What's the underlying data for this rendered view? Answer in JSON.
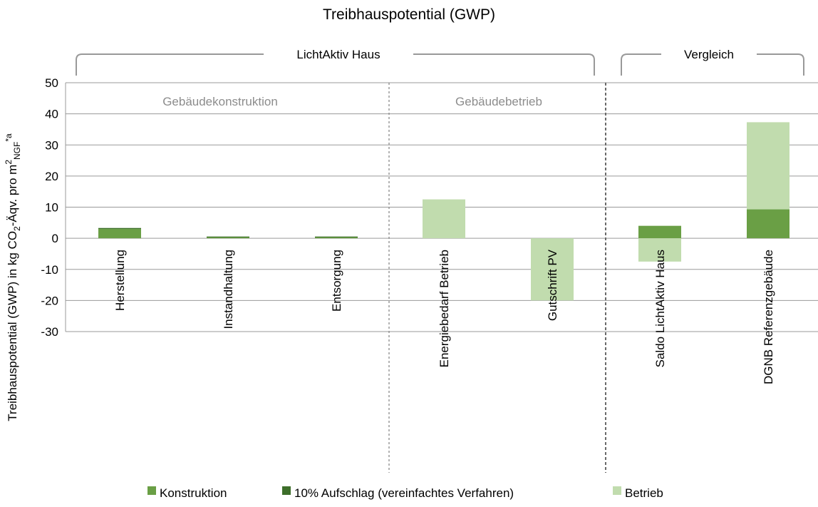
{
  "chart_data": {
    "type": "bar",
    "stacked": true,
    "title": "Treibhauspotential (GWP)",
    "ylabel": "Treibhauspotential (GWP) in kg CO2-Äqv. pro m²NGF*a",
    "ylabel_parts": {
      "a": "Treibhauspotential (GWP) in kg CO",
      "b": "2",
      "c": "-Äqv. pro m",
      "d": "2",
      "e": "NGF",
      "f": "*a"
    },
    "ylim": [
      -30,
      50
    ],
    "yticks": [
      "50",
      "40",
      "30",
      "20",
      "10",
      "0",
      "-10",
      "-20",
      "-30"
    ],
    "grid": true,
    "legend_position": "bottom",
    "categories": [
      "Herstellung",
      "Instandhaltung",
      "Entsorgung",
      "Energiebedarf Betrieb",
      "Gutschrift PV",
      "Saldo LichtAktiv Haus",
      "DGNB Referenzgebäude"
    ],
    "series": [
      {
        "name": "Konstruktion",
        "color": "#6a9f45",
        "values": [
          3.0,
          0.5,
          0.5,
          0,
          0,
          4.0,
          9.3
        ]
      },
      {
        "name": "10% Aufschlag (vereinfachtes Verfahren)",
        "color": "#3d6e2a",
        "values": [
          0.3,
          0.05,
          0.05,
          0,
          0,
          0,
          0
        ]
      },
      {
        "name": "Betrieb",
        "color": "#c1dcae",
        "values": [
          0,
          0,
          0,
          12.5,
          -20,
          -7.5,
          28.0
        ]
      }
    ],
    "sections": [
      "Gebäudekonstruktion",
      "Gebäudebetrieb"
    ],
    "groups": [
      "LichtAktiv Haus",
      "Vergleich"
    ]
  }
}
